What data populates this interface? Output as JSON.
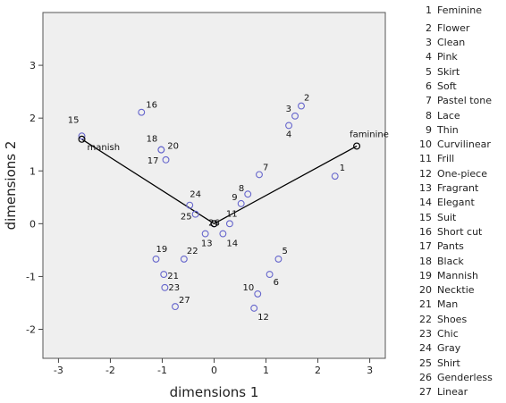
{
  "chart_data": {
    "type": "scatter",
    "xlabel": "dimensions 1",
    "ylabel": "dimensions 2",
    "xlim": [
      -3.3,
      3.3
    ],
    "ylim": [
      -2.55,
      4.0
    ],
    "xticks": [
      "-3",
      "-2",
      "-1",
      "0",
      "1",
      "2",
      "3"
    ],
    "yticks": [
      "-2",
      "-1",
      "0",
      "1",
      "2",
      "3"
    ],
    "grid": false,
    "points": [
      {
        "id": "1",
        "x": 2.33,
        "y": 0.9
      },
      {
        "id": "2",
        "x": 1.68,
        "y": 2.23
      },
      {
        "id": "3",
        "x": 1.56,
        "y": 2.04
      },
      {
        "id": "4",
        "x": 1.44,
        "y": 1.86
      },
      {
        "id": "5",
        "x": 1.24,
        "y": -0.67
      },
      {
        "id": "6",
        "x": 1.07,
        "y": -0.96
      },
      {
        "id": "7",
        "x": 0.87,
        "y": 0.93
      },
      {
        "id": "8",
        "x": 0.65,
        "y": 0.56
      },
      {
        "id": "9",
        "x": 0.52,
        "y": 0.38
      },
      {
        "id": "10",
        "x": 0.84,
        "y": -1.33
      },
      {
        "id": "11",
        "x": 0.3,
        "y": 0.0
      },
      {
        "id": "12",
        "x": 0.77,
        "y": -1.6
      },
      {
        "id": "13",
        "x": -0.17,
        "y": -0.19
      },
      {
        "id": "14",
        "x": 0.17,
        "y": -0.19
      },
      {
        "id": "15",
        "x": -2.55,
        "y": 1.66
      },
      {
        "id": "16",
        "x": -1.4,
        "y": 2.11
      },
      {
        "id": "17",
        "x": -0.93,
        "y": 1.21
      },
      {
        "id": "18",
        "x": -1.02,
        "y": 1.4
      },
      {
        "id": "19",
        "x": -1.12,
        "y": -0.67
      },
      {
        "id": "20",
        "x": -1.02,
        "y": 1.4
      },
      {
        "id": "21",
        "x": -0.97,
        "y": -0.96
      },
      {
        "id": "22",
        "x": -0.58,
        "y": -0.67
      },
      {
        "id": "23",
        "x": -0.95,
        "y": -1.21
      },
      {
        "id": "24",
        "x": -0.47,
        "y": 0.35
      },
      {
        "id": "25",
        "x": -0.36,
        "y": 0.18
      },
      {
        "id": "26",
        "x": 0.0,
        "y": 0.0
      },
      {
        "id": "27",
        "x": -0.75,
        "y": -1.57
      }
    ],
    "reference_points": [
      {
        "label": "manish",
        "x": -2.55,
        "y": 1.6
      },
      {
        "label": "faminine",
        "x": 2.75,
        "y": 1.47
      }
    ],
    "origin": {
      "x": 0.0,
      "y": 0.0
    }
  },
  "legend": [
    {
      "num": "1",
      "text": "Feminine"
    },
    {
      "num": "2",
      "text": "Flower"
    },
    {
      "num": "3",
      "text": "Clean"
    },
    {
      "num": "4",
      "text": "Pink"
    },
    {
      "num": "5",
      "text": "Skirt"
    },
    {
      "num": "6",
      "text": "Soft"
    },
    {
      "num": "7",
      "text": "Pastel tone"
    },
    {
      "num": "8",
      "text": "Lace"
    },
    {
      "num": "9",
      "text": "Thin"
    },
    {
      "num": "10",
      "text": "Curvilinear"
    },
    {
      "num": "11",
      "text": "Frill"
    },
    {
      "num": "12",
      "text": "One-piece"
    },
    {
      "num": "13",
      "text": "Fragrant"
    },
    {
      "num": "14",
      "text": "Elegant"
    },
    {
      "num": "15",
      "text": "Suit"
    },
    {
      "num": "16",
      "text": "Short cut"
    },
    {
      "num": "17",
      "text": "Pants"
    },
    {
      "num": "18",
      "text": "Black"
    },
    {
      "num": "19",
      "text": "Mannish"
    },
    {
      "num": "20",
      "text": "Necktie"
    },
    {
      "num": "21",
      "text": "Man"
    },
    {
      "num": "22",
      "text": "Shoes"
    },
    {
      "num": "23",
      "text": "Chic"
    },
    {
      "num": "24",
      "text": "Gray"
    },
    {
      "num": "25",
      "text": "Shirt"
    },
    {
      "num": "26",
      "text": "Genderless"
    },
    {
      "num": "27",
      "text": "Linear"
    }
  ],
  "colors": {
    "plot_bg": "#efefef",
    "point": "#6666cc",
    "line": "#000000"
  }
}
